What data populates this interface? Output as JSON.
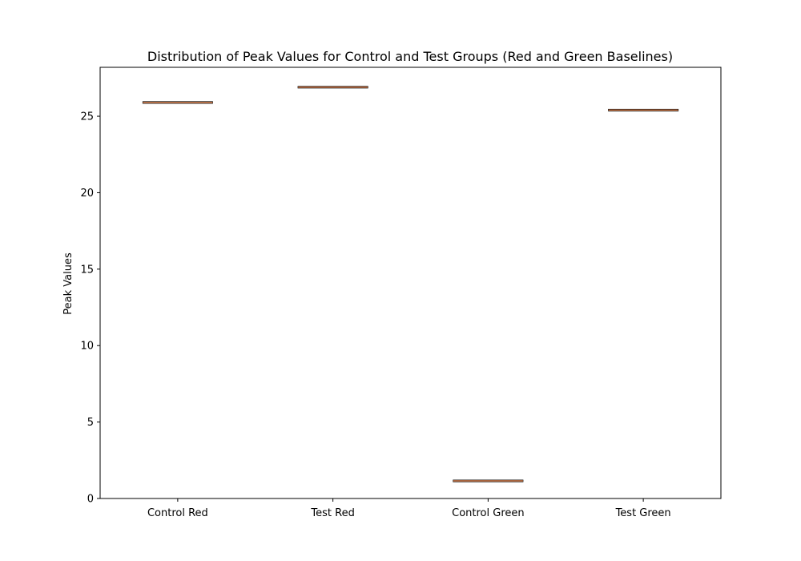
{
  "chart_data": {
    "type": "box",
    "title": "Distribution of Peak Values for Control and Test Groups (Red and Green Baselines)",
    "xlabel": "",
    "ylabel": "Peak Values",
    "categories": [
      "Control Red",
      "Test Red",
      "Control Green",
      "Test Green"
    ],
    "values": [
      25.9,
      26.9,
      1.15,
      25.4
    ],
    "ylim": [
      0,
      28.2
    ],
    "yticks": [
      0,
      5,
      10,
      15,
      20,
      25
    ],
    "grid": false,
    "colors": {
      "box": "#000000",
      "median": "#dd8452"
    }
  }
}
